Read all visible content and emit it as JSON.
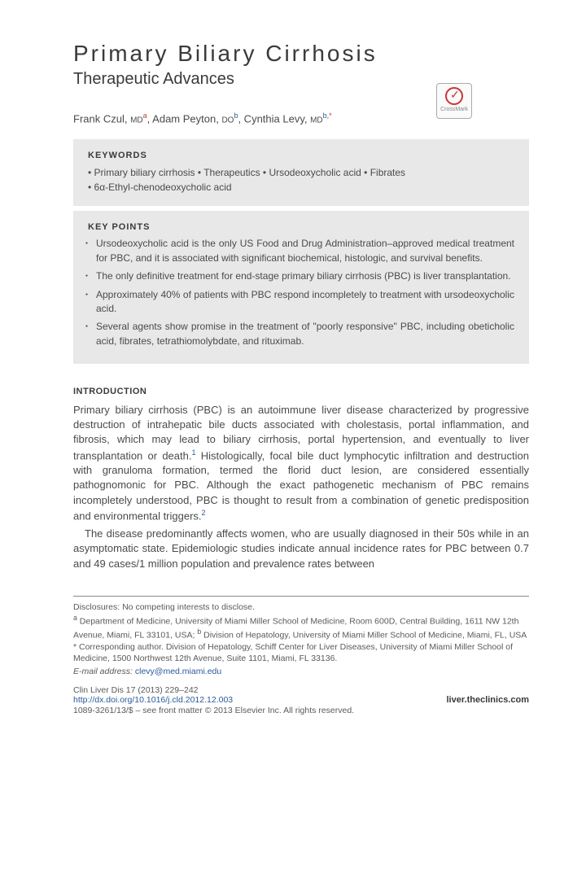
{
  "crossmark": {
    "label": "CrossMark"
  },
  "title": "Primary Biliary Cirrhosis",
  "subtitle": "Therapeutic Advances",
  "authors_html": "Frank Czul, <span class='degree'>MD</span><sup class='sup-red'>a</sup>, Adam Peyton, <span class='degree'>DO</span><sup>b</sup>, Cynthia Levy, <span class='degree'>MD</span><sup>b,</sup><sup class='sup-red'>*</sup>",
  "keywords_heading": "KEYWORDS",
  "keywords_lines": [
    "• Primary biliary cirrhosis • Therapeutics • Ursodeoxycholic acid • Fibrates",
    "• 6α-Ethyl-chenodeoxycholic acid"
  ],
  "keypoints_heading": "KEY POINTS",
  "keypoints": [
    "Ursodeoxycholic acid is the only US Food and Drug Administration–approved medical treatment for PBC, and it is associated with significant biochemical, histologic, and survival benefits.",
    "The only definitive treatment for end-stage primary biliary cirrhosis (PBC) is liver transplantation.",
    "Approximately 40% of patients with PBC respond incompletely to treatment with ursodeoxycholic acid.",
    "Several agents show promise in the treatment of \"poorly responsive\" PBC, including obeticholic acid, fibrates, tetrathiomolybdate, and rituximab."
  ],
  "intro_heading": "INTRODUCTION",
  "intro_para1_html": "Primary biliary cirrhosis (PBC) is an autoimmune liver disease characterized by progressive destruction of intrahepatic bile ducts associated with cholestasis, portal inflammation, and fibrosis, which may lead to biliary cirrhosis, portal hypertension, and eventually to liver transplantation or death.<span class='ref-sup'>1</span> Histologically, focal bile duct lymphocytic infiltration and destruction with granuloma formation, termed the florid duct lesion, are considered essentially pathognomonic for PBC. Although the exact pathogenetic mechanism of PBC remains incompletely understood, PBC is thought to result from a combination of genetic predisposition and environmental triggers.<span class='ref-sup'>2</span>",
  "intro_para2": "The disease predominantly affects women, who are usually diagnosed in their 50s while in an asymptomatic state. Epidemiologic studies indicate annual incidence rates for PBC between 0.7 and 49 cases/1 million population and prevalence rates between",
  "footnotes": {
    "disclosure": "Disclosures: No competing interests to disclose.",
    "affil_html": "<sup>a</sup> Department of Medicine, University of Miami Miller School of Medicine, Room 600D, Central Building, 1611 NW 12th Avenue, Miami, FL 33101, USA; <sup>b</sup> Division of Hepatology, University of Miami Miller School of Medicine, Miami, FL, USA",
    "corresp": "* Corresponding author. Division of Hepatology, Schiff Center for Liver Diseases, University of Miami Miller School of Medicine, 1500 Northwest 12th Avenue, Suite 1101, Miami, FL 33136.",
    "email_label": "E-mail address:",
    "email": "clevy@med.miami.edu"
  },
  "journal": {
    "citation": "Clin Liver Dis 17 (2013) 229–242",
    "doi": "http://dx.doi.org/10.1016/j.cld.2012.12.003",
    "site": "liver.theclinics.com",
    "copyright": "1089-3261/13/$ – see front matter © 2013 Elsevier Inc. All rights reserved."
  }
}
